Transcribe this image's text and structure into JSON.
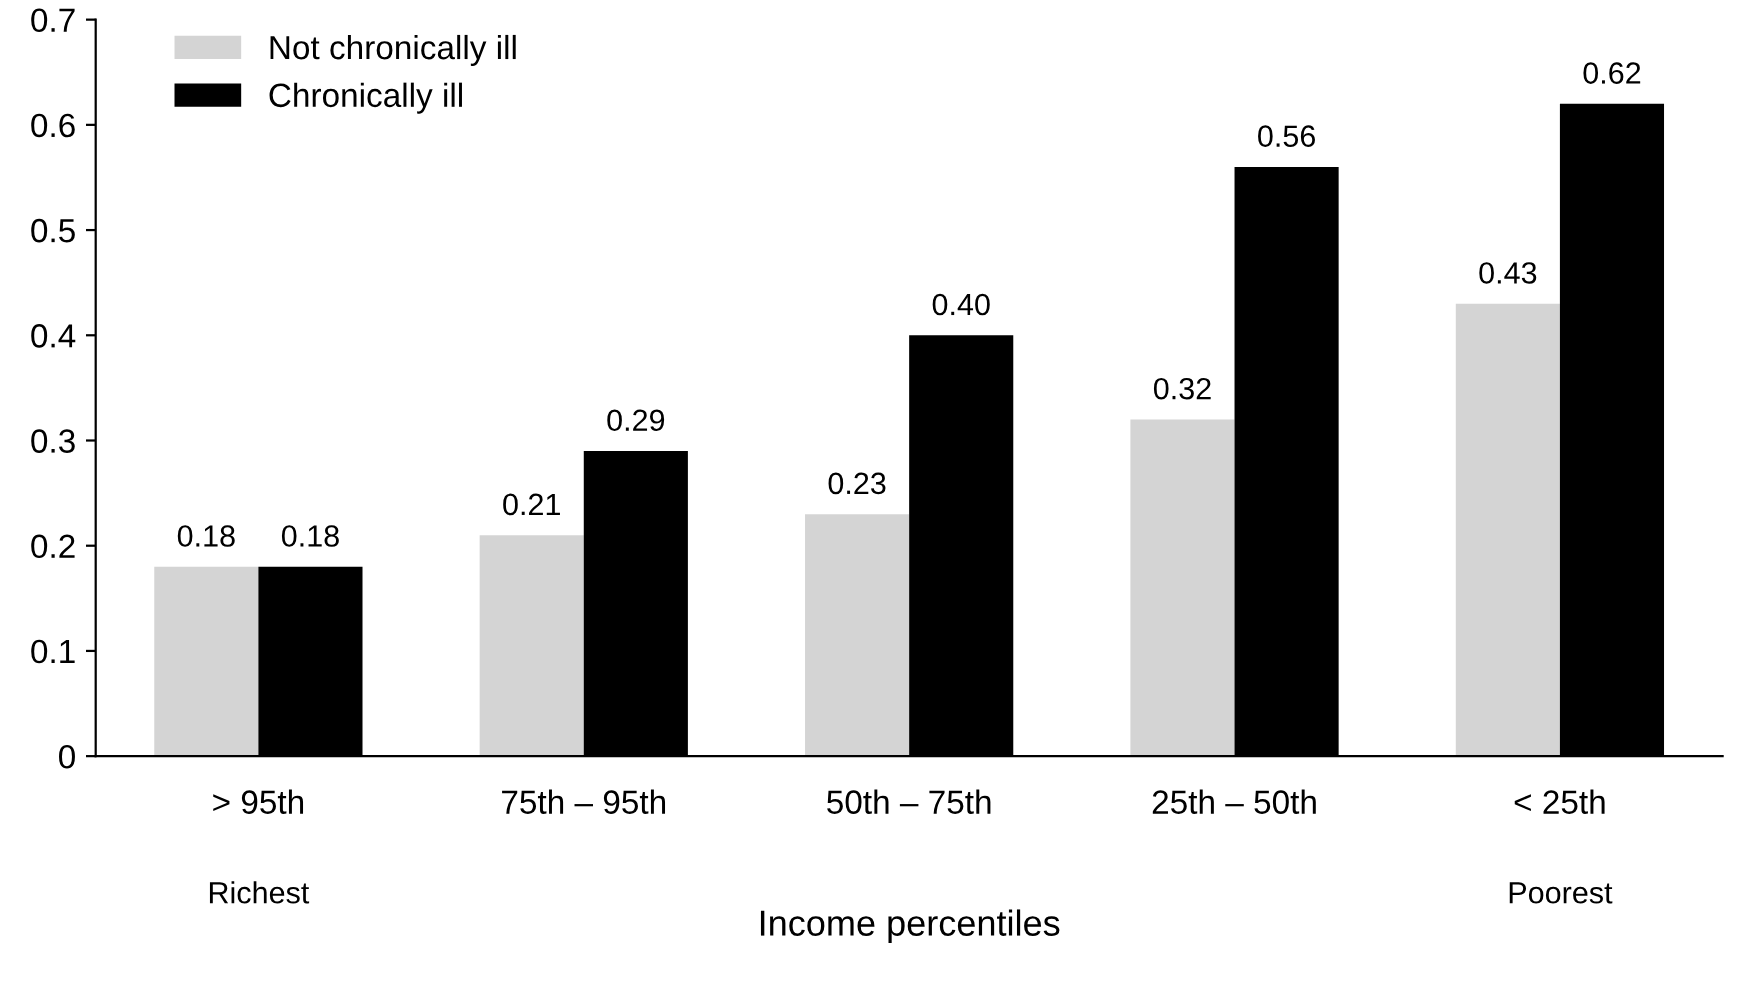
{
  "chart_data": {
    "type": "bar",
    "xlabel": "Income percentiles",
    "categories": [
      "> 95th",
      "75th – 95th",
      "50th – 75th",
      "25th – 50th",
      "< 25th"
    ],
    "series": [
      {
        "name": "Not chronically ill",
        "color": "#d4d4d4",
        "values": [
          0.18,
          0.21,
          0.23,
          0.32,
          0.43
        ],
        "value_labels": [
          "0.18",
          "0.21",
          "0.23",
          "0.32",
          "0.43"
        ]
      },
      {
        "name": "Chronically ill",
        "color": "#000000",
        "values": [
          0.18,
          0.29,
          0.4,
          0.56,
          0.62
        ],
        "value_labels": [
          "0.18",
          "0.29",
          "0.40",
          "0.56",
          "0.62"
        ]
      }
    ],
    "ylim": [
      0,
      0.7
    ],
    "yticks": [
      0,
      0.1,
      0.2,
      0.3,
      0.4,
      0.5,
      0.6,
      0.7
    ],
    "grid": false,
    "legend": "top left",
    "annotations": [
      "Richest",
      "Poorest"
    ]
  }
}
